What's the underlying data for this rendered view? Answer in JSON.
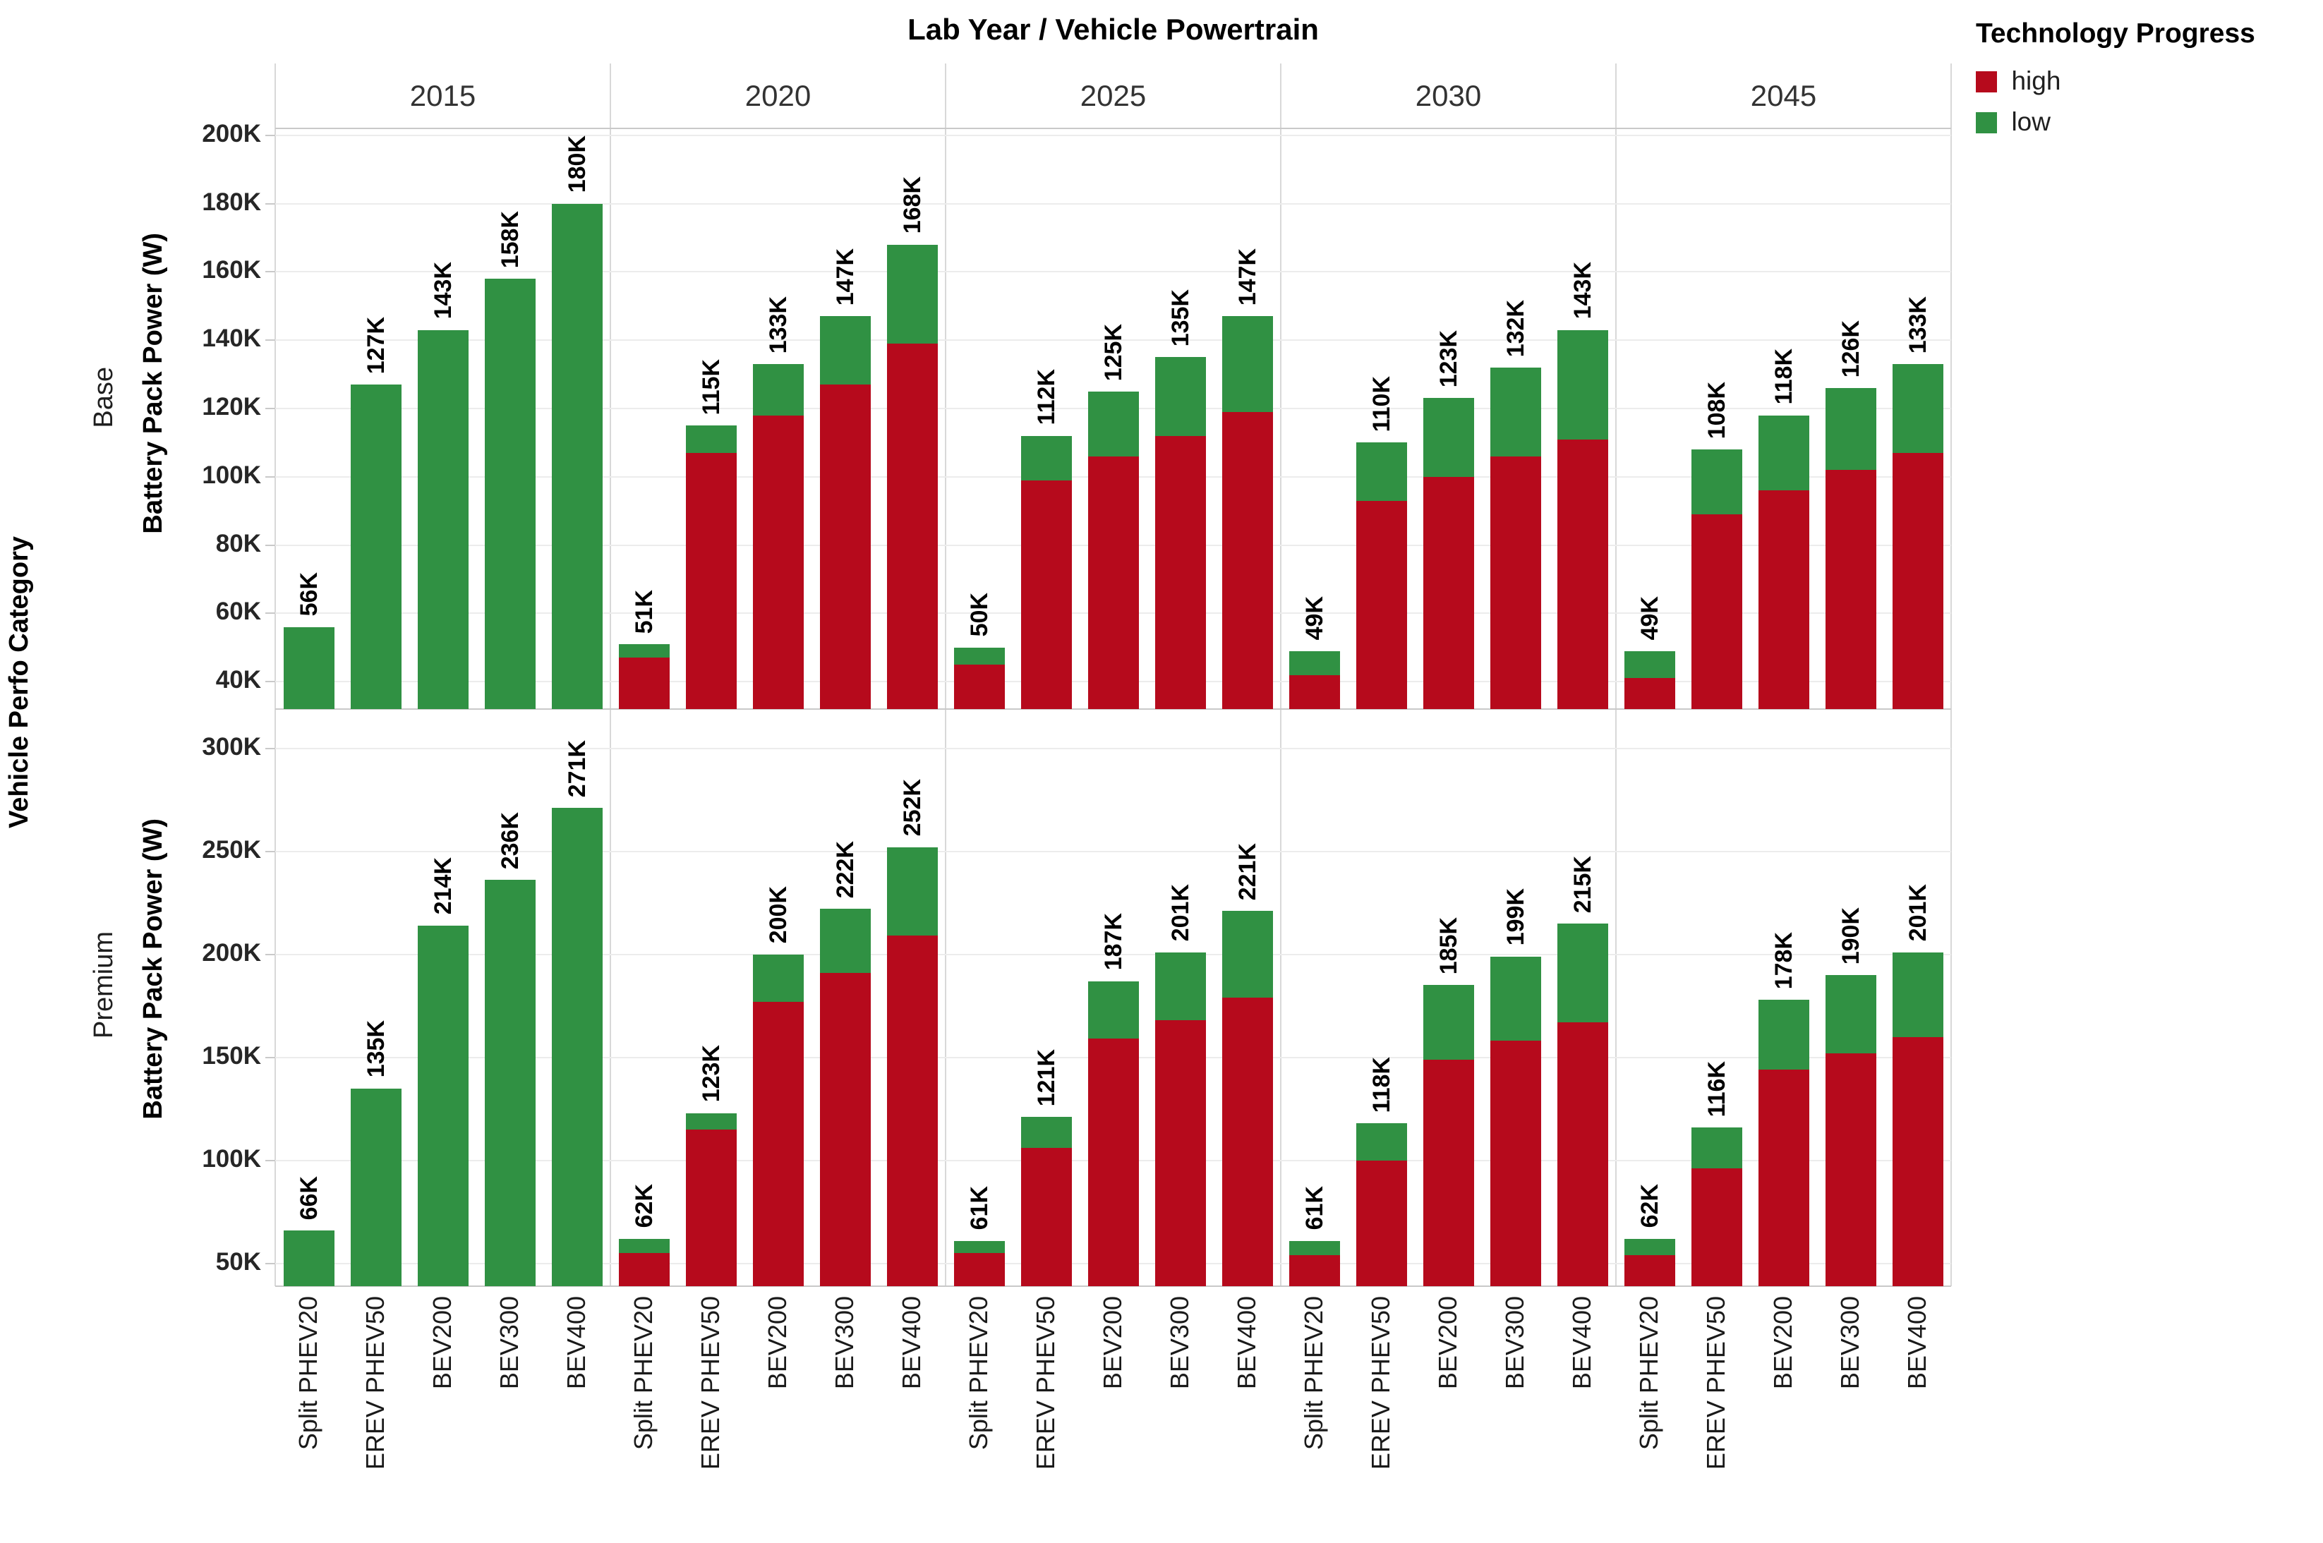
{
  "title": "Lab Year  /  Vehicle Powertrain",
  "legend": {
    "title": "Technology Progress",
    "items": [
      {
        "label": "high",
        "color": "#b60a1c"
      },
      {
        "label": "low",
        "color": "#309143"
      }
    ]
  },
  "axes": {
    "row_dimension_title": "Vehicle Perfo Category",
    "value_axis_title": "Battery Pack Power (W)",
    "column_dimension_values": [
      "2015",
      "2020",
      "2025",
      "2030",
      "2045"
    ],
    "x_category_values": [
      "Split PHEV20",
      "EREV PHEV50",
      "BEV200",
      "BEV300",
      "BEV400"
    ]
  },
  "colors": {
    "high": "#b60a1c",
    "low": "#309143",
    "gridline": "#ececec",
    "panel_border": "#d8d8d8",
    "text_dark": "#1f1f1f"
  },
  "chart_data": {
    "type": "bar",
    "orientation": "vertical",
    "units": "Battery pack power in watts; labels shown in thousands (K)",
    "grid": true,
    "legend_position": "top-right",
    "series_note": "Green bar = 'low' technology progress scenario (full bar height, value labeled above bar). Red bar = 'high' technology progress scenario, drawn in front from the axis base (values estimated from pixels). 2015 lab year has only one (all-green) scenario. Bars are clipped at the panel bottom (axis does not start at 0).",
    "categories": [
      "Split PHEV20",
      "EREV PHEV50",
      "BEV200",
      "BEV300",
      "BEV400"
    ],
    "rows": [
      {
        "category": "Base",
        "ylim_k": [
          32,
          202
        ],
        "value_axis_ticks_k": [
          40,
          60,
          80,
          100,
          120,
          140,
          160,
          180,
          200
        ],
        "value_axis_tick_labels": [
          "40K",
          "60K",
          "80K",
          "100K",
          "120K",
          "140K",
          "160K",
          "180K",
          "200K"
        ],
        "panels": [
          {
            "year": "2015",
            "low_k": [
              56,
              127,
              143,
              158,
              180
            ],
            "high_k": [
              null,
              null,
              null,
              null,
              null
            ],
            "labels": [
              "56K",
              "127K",
              "143K",
              "158K",
              "180K"
            ]
          },
          {
            "year": "2020",
            "low_k": [
              51,
              115,
              133,
              147,
              168
            ],
            "high_k": [
              47,
              107,
              118,
              127,
              139
            ],
            "labels": [
              "51K",
              "115K",
              "133K",
              "147K",
              "168K"
            ]
          },
          {
            "year": "2025",
            "low_k": [
              50,
              112,
              125,
              135,
              147
            ],
            "high_k": [
              45,
              99,
              106,
              112,
              119
            ],
            "labels": [
              "50K",
              "112K",
              "125K",
              "135K",
              "147K"
            ]
          },
          {
            "year": "2030",
            "low_k": [
              49,
              110,
              123,
              132,
              143
            ],
            "high_k": [
              42,
              93,
              100,
              106,
              111
            ],
            "labels": [
              "49K",
              "110K",
              "123K",
              "132K",
              "143K"
            ]
          },
          {
            "year": "2045",
            "low_k": [
              49,
              108,
              118,
              126,
              133
            ],
            "high_k": [
              41,
              89,
              96,
              102,
              107
            ],
            "labels": [
              "49K",
              "108K",
              "118K",
              "126K",
              "133K"
            ]
          }
        ]
      },
      {
        "category": "Premium",
        "ylim_k": [
          39,
          319
        ],
        "value_axis_ticks_k": [
          50,
          100,
          150,
          200,
          250,
          300
        ],
        "value_axis_tick_labels": [
          "50K",
          "100K",
          "150K",
          "200K",
          "250K",
          "300K"
        ],
        "panels": [
          {
            "year": "2015",
            "low_k": [
              66,
              135,
              214,
              236,
              271
            ],
            "high_k": [
              null,
              null,
              null,
              null,
              null
            ],
            "labels": [
              "66K",
              "135K",
              "214K",
              "236K",
              "271K"
            ]
          },
          {
            "year": "2020",
            "low_k": [
              62,
              123,
              200,
              222,
              252
            ],
            "high_k": [
              55,
              115,
              177,
              191,
              209
            ],
            "labels": [
              "62K",
              "123K",
              "200K",
              "222K",
              "252K"
            ]
          },
          {
            "year": "2025",
            "low_k": [
              61,
              121,
              187,
              201,
              221
            ],
            "high_k": [
              55,
              106,
              159,
              168,
              179
            ],
            "labels": [
              "61K",
              "121K",
              "187K",
              "201K",
              "221K"
            ]
          },
          {
            "year": "2030",
            "year_note": "",
            "low_k": [
              61,
              118,
              185,
              199,
              215
            ],
            "high_k": [
              54,
              100,
              149,
              158,
              167
            ],
            "labels": [
              "61K",
              "118K",
              "185K",
              "199K",
              "215K"
            ]
          },
          {
            "year": "2045",
            "low_k": [
              62,
              116,
              178,
              190,
              201
            ],
            "high_k": [
              54,
              96,
              144,
              152,
              160
            ],
            "labels": [
              "62K",
              "116K",
              "178K",
              "190K",
              "201K"
            ]
          }
        ]
      }
    ]
  }
}
